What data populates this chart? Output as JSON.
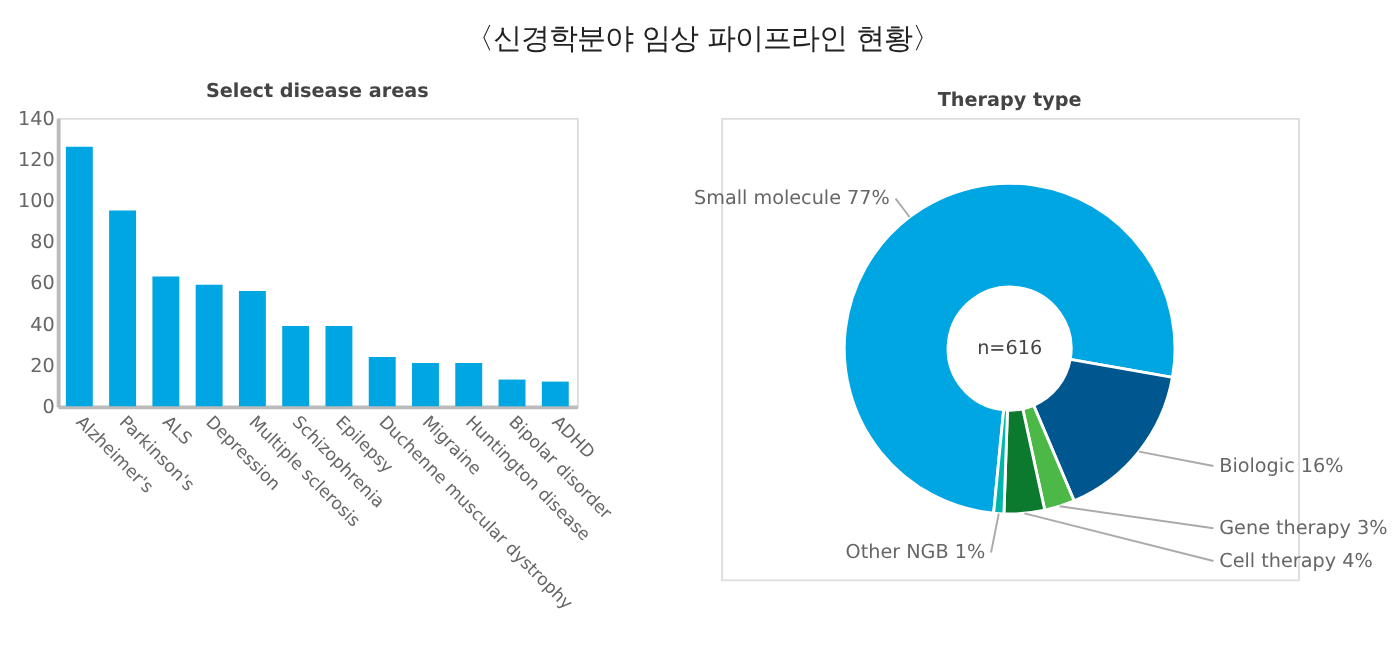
{
  "chart_data": [
    {
      "type": "bar",
      "title": "〈신경학분야 임상 파이프라인 현황〉",
      "subtitle": "Select disease areas",
      "categories": [
        "Alzheimer's",
        "Parkinson's",
        "ALS",
        "Depression",
        "Multiple sclerosis",
        "Schizophrenia",
        "Epilepsy",
        "Duchenne muscular dystrophy",
        "Migraine",
        "Huntington disease",
        "Bipolar disorder",
        "ADHD"
      ],
      "values": [
        126,
        95,
        63,
        59,
        56,
        39,
        39,
        24,
        21,
        21,
        13,
        12
      ],
      "color": "#00a6e2",
      "ylim": [
        0,
        140
      ],
      "yticks": [
        0,
        20,
        40,
        60,
        80,
        100,
        120,
        140
      ],
      "grid": false,
      "legend": false
    },
    {
      "type": "donut",
      "subtitle": "Therapy type",
      "categories": [
        "Small molecule",
        "Biologic",
        "Gene therapy",
        "Cell therapy",
        "Other NGB"
      ],
      "values": [
        77,
        16,
        3,
        4,
        1
      ],
      "value_labels": [
        "77%",
        "16%",
        "3%",
        "4%",
        "1%"
      ],
      "colors": [
        "#00a6e2",
        "#00568f",
        "#4cb848",
        "#0b7a2e",
        "#00b5ad"
      ],
      "annotations": [
        "n=616"
      ],
      "legend": false
    }
  ]
}
